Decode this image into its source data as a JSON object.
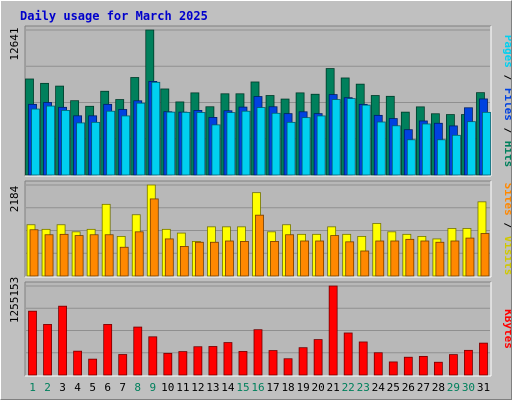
{
  "title": "Daily usage for March 2025",
  "colors": {
    "background": "#c0c0c0",
    "panel": "#b8b8b8",
    "gridline": "#8f8f8f",
    "title": "#0000cc",
    "hits": "#00805c",
    "files": "#0042e0",
    "pages": "#00d0f0",
    "visits": "#ffff00",
    "sites": "#ff8800",
    "kbytes": "#ff0000",
    "day_weekday": "#000000",
    "day_weekend": "#00805c"
  },
  "chart_data": [
    {
      "type": "bar",
      "name": "hits-files-pages",
      "categories": [
        "1",
        "2",
        "3",
        "4",
        "5",
        "6",
        "7",
        "8",
        "9",
        "10",
        "11",
        "12",
        "13",
        "14",
        "15",
        "16",
        "17",
        "18",
        "19",
        "20",
        "21",
        "22",
        "23",
        "24",
        "25",
        "26",
        "27",
        "28",
        "29",
        "30",
        "31"
      ],
      "y_max_label": "12641",
      "ylim": [
        0,
        12641
      ],
      "grid": true,
      "series": [
        {
          "name": "Hits",
          "values": [
            8370,
            7990,
            7750,
            6480,
            5990,
            7300,
            6580,
            8500,
            12641,
            7500,
            6370,
            7160,
            5950,
            7080,
            7080,
            8110,
            6930,
            6620,
            7160,
            7040,
            9280,
            8460,
            7920,
            6930,
            6860,
            5480,
            5940,
            5340,
            5270,
            5270,
            7180
          ]
        },
        {
          "name": "Files",
          "values": [
            6160,
            6320,
            5900,
            5160,
            5160,
            6160,
            5710,
            6470,
            8160,
            5520,
            5480,
            5630,
            5020,
            5600,
            5920,
            6840,
            5950,
            5350,
            5510,
            5350,
            7010,
            6740,
            6160,
            5200,
            4920,
            3950,
            4710,
            4510,
            4280,
            5860,
            6630
          ]
        },
        {
          "name": "Pages",
          "values": [
            5750,
            6010,
            5630,
            4540,
            4590,
            5560,
            5150,
            6260,
            8080,
            5480,
            5460,
            5450,
            4370,
            5440,
            5560,
            5880,
            5380,
            4590,
            5000,
            5150,
            6580,
            6660,
            6090,
            4620,
            4290,
            3070,
            4450,
            3070,
            3460,
            4650,
            5460
          ]
        }
      ]
    },
    {
      "type": "bar",
      "name": "visits-sites",
      "categories": [
        "1",
        "2",
        "3",
        "4",
        "5",
        "6",
        "7",
        "8",
        "9",
        "10",
        "11",
        "12",
        "13",
        "14",
        "15",
        "16",
        "17",
        "18",
        "19",
        "20",
        "21",
        "22",
        "23",
        "24",
        "25",
        "26",
        "27",
        "28",
        "29",
        "30",
        "31"
      ],
      "y_max_label": "2184",
      "ylim": [
        0,
        2184
      ],
      "grid": true,
      "series": [
        {
          "name": "Visits",
          "values": [
            1230,
            1120,
            1230,
            1060,
            1120,
            1720,
            950,
            1470,
            2184,
            1120,
            1030,
            830,
            1180,
            1180,
            1180,
            2000,
            1060,
            1230,
            1000,
            1000,
            1180,
            1000,
            950,
            1260,
            1060,
            1000,
            950,
            890,
            1140,
            1140,
            1780
          ]
        },
        {
          "name": "Sites",
          "values": [
            1110,
            990,
            1000,
            970,
            990,
            990,
            690,
            1060,
            1850,
            890,
            710,
            810,
            810,
            840,
            830,
            1460,
            830,
            990,
            840,
            840,
            970,
            820,
            600,
            840,
            840,
            880,
            840,
            810,
            840,
            910,
            1020
          ]
        }
      ]
    },
    {
      "type": "bar",
      "name": "kbytes",
      "categories": [
        "1",
        "2",
        "3",
        "4",
        "5",
        "6",
        "7",
        "8",
        "9",
        "10",
        "11",
        "12",
        "13",
        "14",
        "15",
        "16",
        "17",
        "18",
        "19",
        "20",
        "21",
        "22",
        "23",
        "24",
        "25",
        "26",
        "27",
        "28",
        "29",
        "30",
        "31"
      ],
      "y_max_label": "1255153",
      "ylim": [
        0,
        1255153
      ],
      "grid": true,
      "series": [
        {
          "name": "KBytes",
          "values": [
            899900,
            713000,
            970500,
            336000,
            223700,
            713000,
            288900,
            676000,
            538700,
            305400,
            330300,
            398800,
            402200,
            457600,
            332300,
            639100,
            345000,
            229300,
            385300,
            499700,
            1255153,
            592600,
            465900,
            314100,
            184300,
            250600,
            262600,
            180000,
            287800,
            347800,
            449500
          ]
        }
      ]
    }
  ],
  "x_labels": [
    "1",
    "2",
    "3",
    "4",
    "5",
    "6",
    "7",
    "8",
    "9",
    "10",
    "11",
    "12",
    "13",
    "14",
    "15",
    "16",
    "17",
    "18",
    "19",
    "20",
    "21",
    "22",
    "23",
    "24",
    "25",
    "26",
    "27",
    "28",
    "29",
    "30",
    "31"
  ],
  "weekend_days": [
    1,
    2,
    8,
    9,
    15,
    16,
    22,
    23,
    29,
    30
  ],
  "legend_top": [
    {
      "text": "Pages",
      "color": "#00d0f0"
    },
    {
      "text": " / ",
      "color": "#000000"
    },
    {
      "text": "Files",
      "color": "#0042e0"
    },
    {
      "text": " / ",
      "color": "#000000"
    },
    {
      "text": "Hits",
      "color": "#00805c"
    }
  ],
  "legend_middle": [
    {
      "text": "Sites",
      "color": "#ff8800"
    },
    {
      "text": " / ",
      "color": "#000000"
    },
    {
      "text": "Visits",
      "color": "#d0c800"
    }
  ],
  "legend_bottom": [
    {
      "text": "KBytes",
      "color": "#ff0000"
    }
  ]
}
